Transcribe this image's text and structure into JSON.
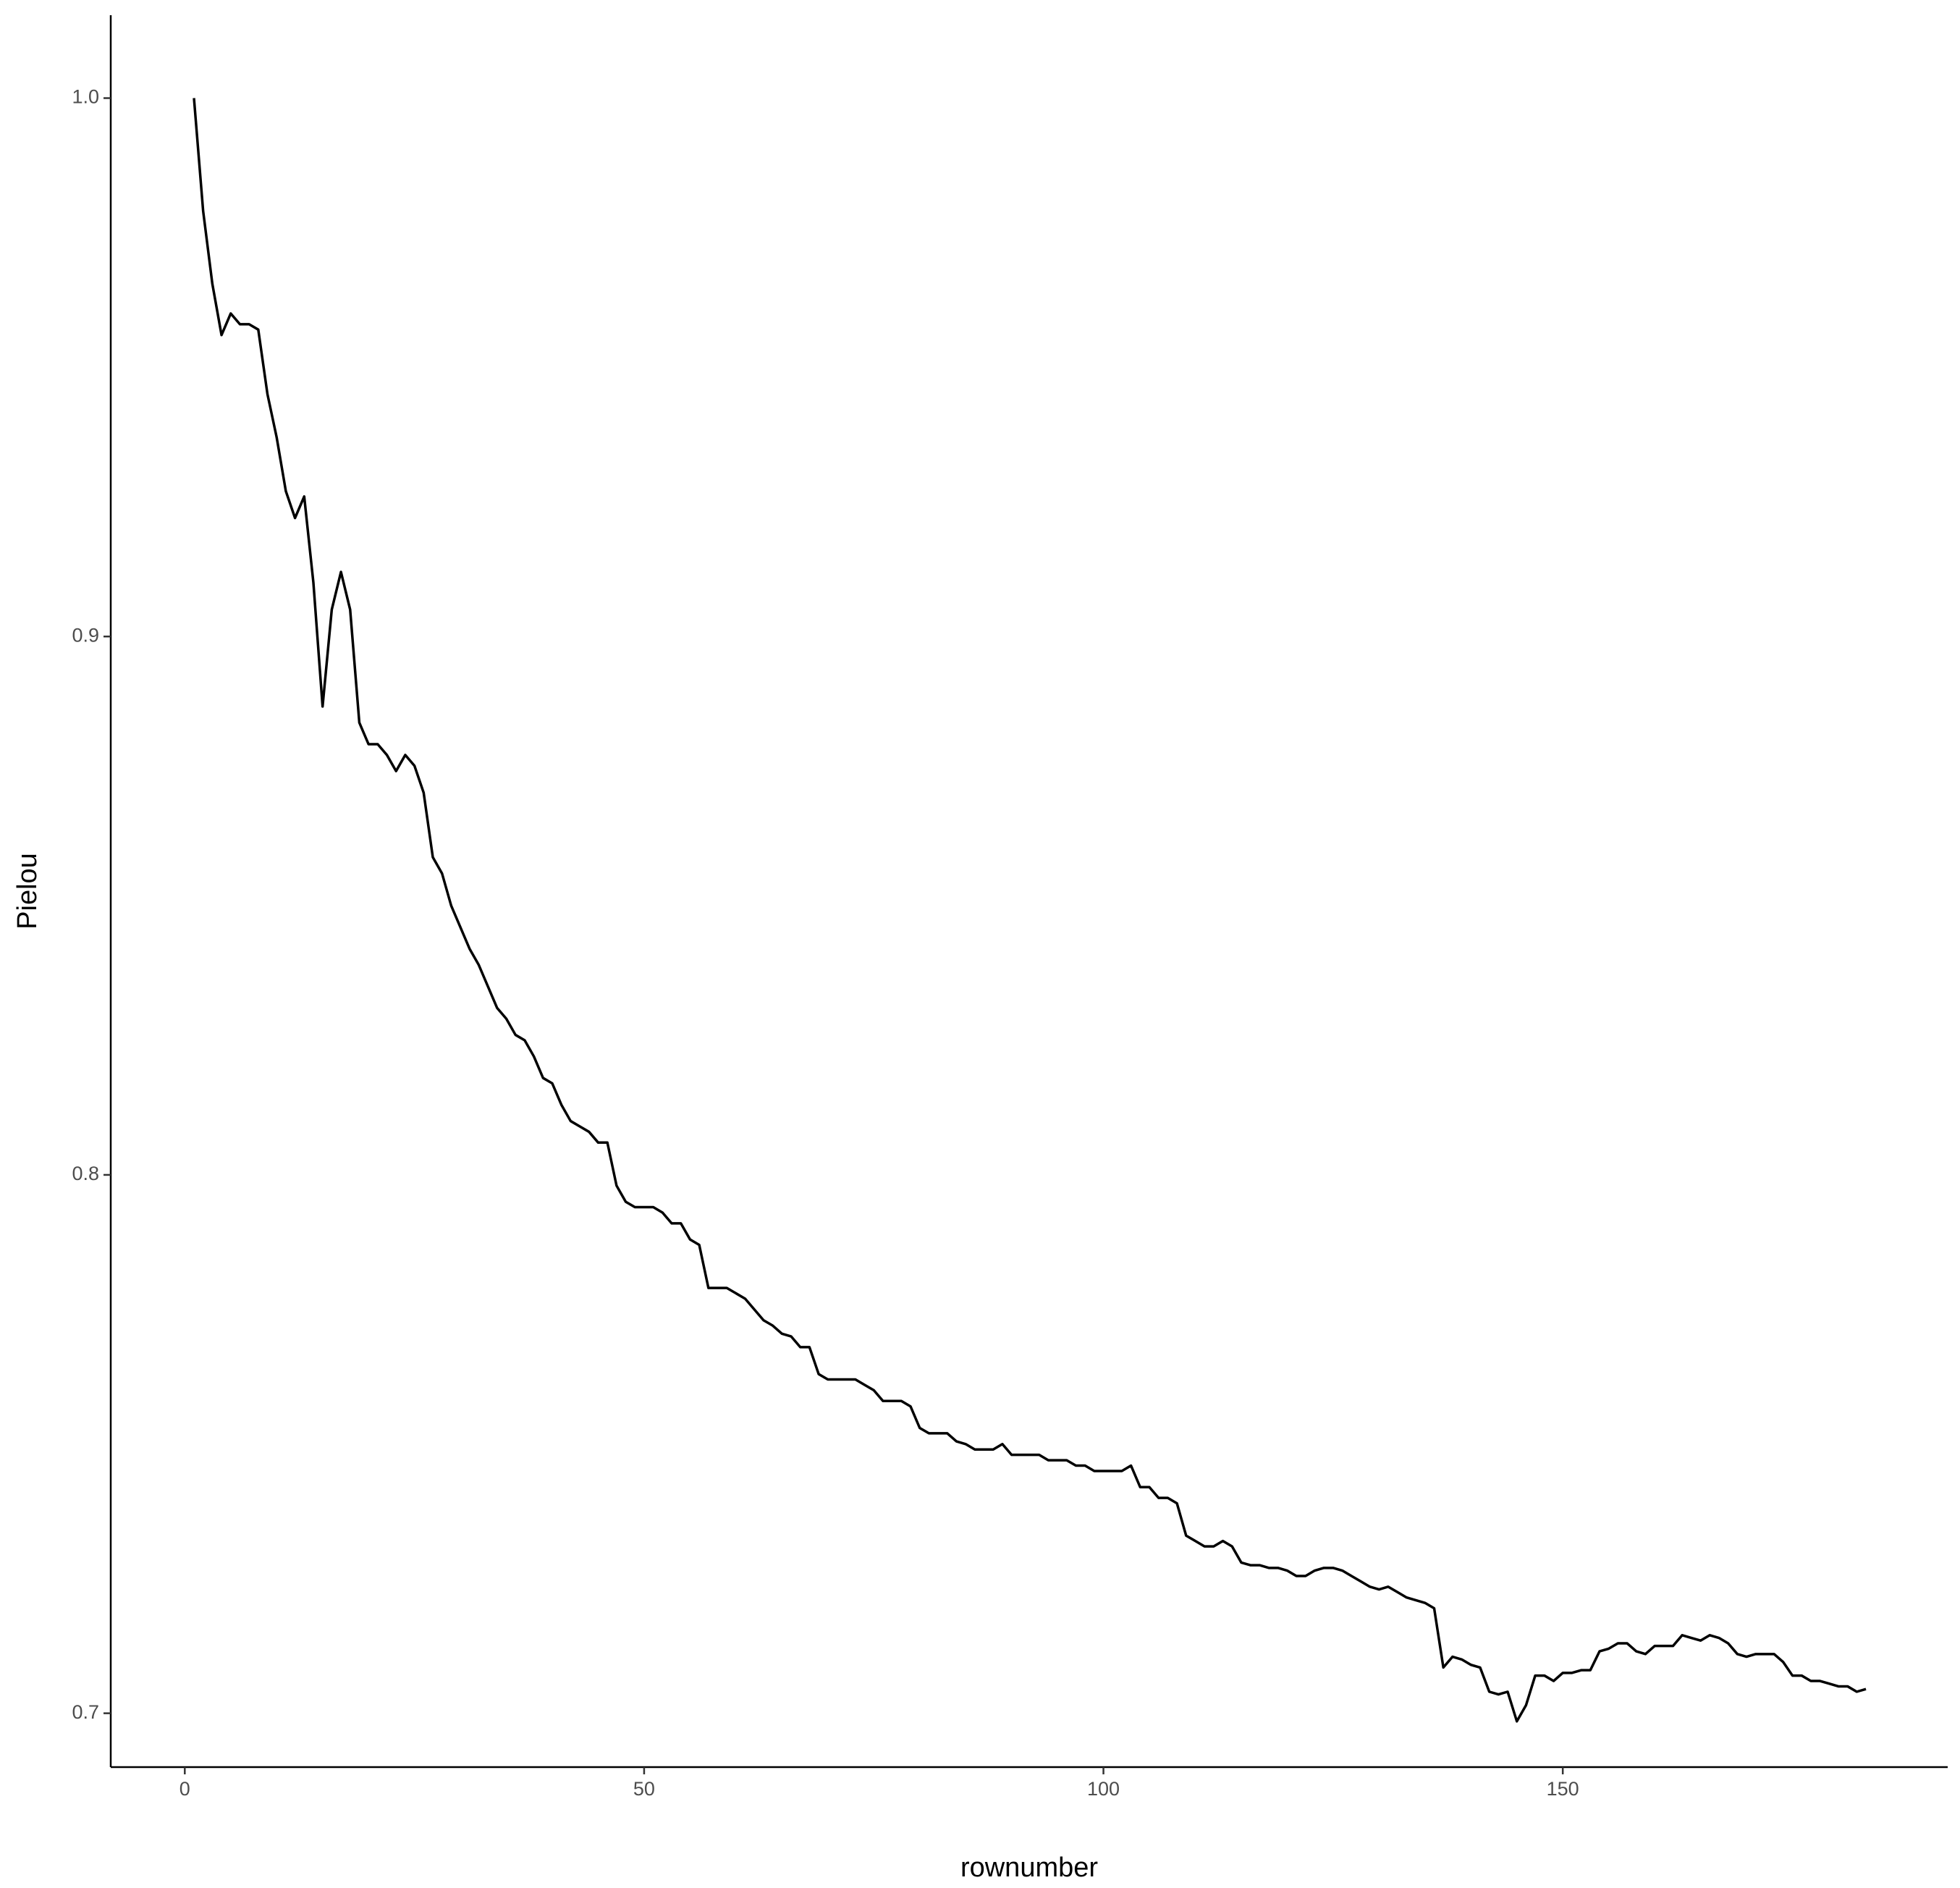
{
  "chart_data": {
    "type": "line",
    "x_label": "rownumber",
    "y_label": "Pielou",
    "color": "#000000",
    "x": [
      1,
      2,
      3,
      4,
      5,
      6,
      7,
      8,
      9,
      10,
      11,
      12,
      13,
      14,
      15,
      16,
      17,
      18,
      19,
      20,
      21,
      22,
      23,
      24,
      25,
      26,
      27,
      28,
      29,
      30,
      31,
      32,
      33,
      34,
      35,
      36,
      37,
      38,
      39,
      40,
      41,
      42,
      43,
      44,
      45,
      46,
      47,
      48,
      49,
      50,
      51,
      52,
      53,
      54,
      55,
      56,
      57,
      58,
      59,
      60,
      61,
      62,
      63,
      64,
      65,
      66,
      67,
      68,
      69,
      70,
      71,
      72,
      73,
      74,
      75,
      76,
      77,
      78,
      79,
      80,
      81,
      82,
      83,
      84,
      85,
      86,
      87,
      88,
      89,
      90,
      91,
      92,
      93,
      94,
      95,
      96,
      97,
      98,
      99,
      100,
      101,
      102,
      103,
      104,
      105,
      106,
      107,
      108,
      109,
      110,
      111,
      112,
      113,
      114,
      115,
      116,
      117,
      118,
      119,
      120,
      121,
      122,
      123,
      124,
      125,
      126,
      127,
      128,
      129,
      130,
      131,
      132,
      133,
      134,
      135,
      136,
      137,
      138,
      139,
      140,
      141,
      142,
      143,
      144,
      145,
      146,
      147,
      148,
      149,
      150,
      151,
      152,
      153,
      154,
      155,
      156,
      157,
      158,
      159,
      160,
      161,
      162,
      163,
      164,
      165,
      166,
      167,
      168,
      169,
      170,
      171,
      172,
      173,
      174,
      175,
      176,
      177,
      178,
      179,
      180,
      181,
      182,
      183
    ],
    "values": [
      1.0,
      0.979,
      0.9655,
      0.956,
      0.96,
      0.958,
      0.958,
      0.957,
      0.945,
      0.937,
      0.927,
      0.922,
      0.926,
      0.91,
      0.887,
      0.905,
      0.912,
      0.905,
      0.884,
      0.88,
      0.88,
      0.878,
      0.875,
      0.878,
      0.876,
      0.871,
      0.859,
      0.856,
      0.85,
      0.846,
      0.842,
      0.839,
      0.835,
      0.831,
      0.829,
      0.826,
      0.825,
      0.822,
      0.818,
      0.817,
      0.813,
      0.81,
      0.809,
      0.808,
      0.806,
      0.806,
      0.798,
      0.795,
      0.794,
      0.794,
      0.794,
      0.793,
      0.791,
      0.791,
      0.788,
      0.787,
      0.779,
      0.779,
      0.779,
      0.778,
      0.777,
      0.775,
      0.773,
      0.772,
      0.7705,
      0.77,
      0.768,
      0.768,
      0.763,
      0.762,
      0.762,
      0.762,
      0.762,
      0.761,
      0.76,
      0.758,
      0.758,
      0.758,
      0.757,
      0.753,
      0.752,
      0.752,
      0.752,
      0.7505,
      0.75,
      0.749,
      0.749,
      0.749,
      0.75,
      0.748,
      0.748,
      0.748,
      0.748,
      0.747,
      0.747,
      0.747,
      0.746,
      0.746,
      0.745,
      0.745,
      0.745,
      0.745,
      0.746,
      0.742,
      0.742,
      0.74,
      0.74,
      0.739,
      0.733,
      0.732,
      0.731,
      0.731,
      0.732,
      0.731,
      0.728,
      0.7275,
      0.7275,
      0.727,
      0.727,
      0.7265,
      0.7255,
      0.7255,
      0.7265,
      0.727,
      0.727,
      0.7265,
      0.7255,
      0.7245,
      0.7235,
      0.723,
      0.7235,
      0.7225,
      0.7215,
      0.721,
      0.7205,
      0.7195,
      0.7085,
      0.7105,
      0.71,
      0.709,
      0.7085,
      0.704,
      0.7035,
      0.704,
      0.6985,
      0.7015,
      0.707,
      0.707,
      0.706,
      0.7075,
      0.7075,
      0.708,
      0.708,
      0.7115,
      0.712,
      0.713,
      0.713,
      0.7115,
      0.711,
      0.7125,
      0.7125,
      0.7125,
      0.7145,
      0.714,
      0.7135,
      0.7145,
      0.714,
      0.713,
      0.711,
      0.7105,
      0.711,
      0.711,
      0.711,
      0.7095,
      0.707,
      0.707,
      0.706,
      0.706,
      0.7055,
      0.705,
      0.705,
      0.704,
      0.7045
    ],
    "xlim": [
      -8.06,
      191.9
    ],
    "xticks": [
      0,
      50,
      100,
      150
    ],
    "ylim": [
      0.69,
      1.0154
    ],
    "yticks": [
      {
        "value": 1,
        "label": "1.0"
      },
      0.9,
      0.8,
      0.7
    ]
  }
}
